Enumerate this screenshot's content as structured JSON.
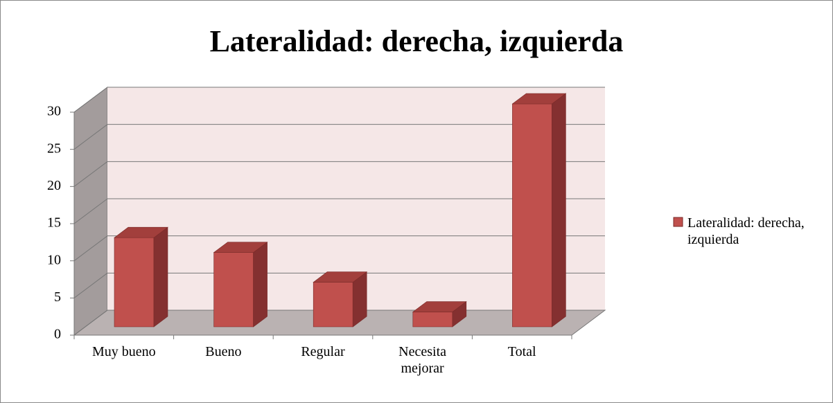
{
  "chart_data": {
    "type": "bar3d",
    "title": "Lateralidad: derecha, izquierda",
    "categories": [
      "Muy bueno",
      "Bueno",
      "Regular",
      "Necesita mejorar",
      "Total"
    ],
    "series": [
      {
        "name": "Lateralidad: derecha, izquierda",
        "color": "#c0504d",
        "values": [
          12,
          10,
          6,
          2,
          30
        ]
      }
    ],
    "ylim": [
      0,
      30
    ],
    "yticks": [
      0,
      5,
      10,
      15,
      20,
      25,
      30
    ],
    "grid": true,
    "legend": "right"
  }
}
